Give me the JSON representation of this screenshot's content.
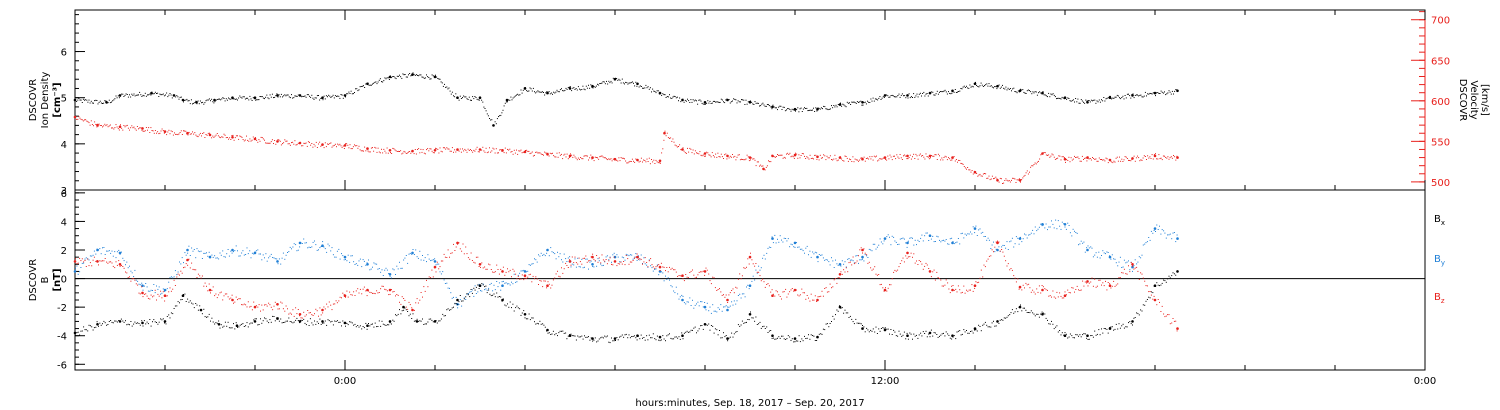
{
  "colors": {
    "density": "#000000",
    "velocity": "#e8201c",
    "bx": "#000000",
    "by": "#1f7fd6",
    "bz": "#e8201c",
    "axes": "#000000"
  },
  "xlabel": "hours:minutes, Sep. 18, 2017 – Sep. 20, 2017",
  "x_ticks": [
    {
      "hour": 0,
      "label": "0:00"
    },
    {
      "hour": 12,
      "label": "12:00"
    },
    {
      "hour": 24,
      "label": "0:00"
    }
  ],
  "chart_data": [
    {
      "type": "scatter",
      "panel": "top",
      "left_axis": {
        "label_lines": [
          "DSCOVR",
          "Ion Density",
          "[cm⁻³]"
        ],
        "ticks": [
          3,
          4,
          5,
          6
        ],
        "tick_labels": [
          "3",
          "4",
          "5",
          "6"
        ],
        "range": [
          3.0,
          6.9
        ]
      },
      "right_axis": {
        "label_lines": [
          "DSCOVR",
          "Velocity",
          "[km/s]"
        ],
        "ticks": [
          500,
          550,
          600,
          650,
          700
        ],
        "tick_labels": [
          "500",
          "550",
          "600",
          "650",
          "700"
        ],
        "range": [
          490,
          712
        ]
      },
      "x_range_hours": [
        -6,
        24
      ],
      "series": [
        {
          "key": "density",
          "axis": "left",
          "x": [
            -6.0,
            -5.3,
            -5.0,
            -4.3,
            -3.8,
            -3.6,
            -3.3,
            -2.9,
            -2.5,
            -2.0,
            -1.5,
            -1.0,
            -0.5,
            0.0,
            0.5,
            1.0,
            1.5,
            2.0,
            2.5,
            3.0,
            3.3,
            3.6,
            4.0,
            4.5,
            5.0,
            5.5,
            6.0,
            6.5,
            7.0,
            7.5,
            8.0,
            8.5,
            9.0,
            9.5,
            10.0,
            10.5,
            11.0,
            11.5,
            12.0,
            12.5,
            13.0,
            13.5,
            14.0,
            14.5,
            15.0,
            15.5,
            16.0,
            16.5,
            17.0,
            17.5,
            18.0,
            18.5
          ],
          "y": [
            4.95,
            4.9,
            5.05,
            5.1,
            5.05,
            4.95,
            4.9,
            4.95,
            5.0,
            5.0,
            5.05,
            5.05,
            5.0,
            5.05,
            5.3,
            5.45,
            5.5,
            5.45,
            5.0,
            5.0,
            4.4,
            4.95,
            5.2,
            5.1,
            5.2,
            5.25,
            5.4,
            5.3,
            5.1,
            4.95,
            4.9,
            4.95,
            4.9,
            4.8,
            4.75,
            4.75,
            4.85,
            4.9,
            5.05,
            5.05,
            5.1,
            5.15,
            5.3,
            5.25,
            5.15,
            5.1,
            5.0,
            4.9,
            5.0,
            5.05,
            5.1,
            5.15
          ]
        },
        {
          "key": "velocity",
          "axis": "right",
          "x": [
            -6.0,
            -5.5,
            -5.0,
            -4.5,
            -4.0,
            -3.5,
            -3.0,
            -2.5,
            -2.0,
            -1.5,
            -1.0,
            -0.5,
            0.0,
            0.5,
            1.0,
            1.5,
            2.0,
            2.5,
            3.0,
            3.5,
            4.0,
            4.5,
            5.0,
            5.5,
            6.0,
            6.5,
            7.0,
            7.1,
            7.5,
            8.0,
            8.5,
            9.0,
            9.3,
            9.5,
            10.0,
            10.5,
            11.0,
            11.5,
            12.0,
            12.5,
            13.0,
            13.5,
            14.0,
            14.5,
            15.0,
            15.5,
            16.0,
            16.5,
            17.0,
            17.5,
            18.0,
            18.5
          ],
          "y": [
            580,
            570,
            568,
            566,
            562,
            560,
            558,
            555,
            553,
            550,
            548,
            546,
            545,
            541,
            539,
            538,
            539,
            540,
            540,
            539,
            537,
            534,
            532,
            530,
            528,
            527,
            526,
            560,
            540,
            535,
            532,
            530,
            516,
            532,
            533,
            531,
            530,
            528,
            530,
            532,
            532,
            530,
            512,
            502,
            502,
            535,
            528,
            530,
            527,
            529,
            532,
            530
          ]
        }
      ]
    },
    {
      "type": "scatter",
      "panel": "bottom",
      "left_axis": {
        "label_lines": [
          "DSCOVR",
          "B",
          "[nT]"
        ],
        "ticks": [
          -6,
          -4,
          -2,
          0,
          2,
          4,
          6
        ],
        "tick_labels": [
          "-6",
          "-4",
          "-2",
          "0",
          "2",
          "4",
          "6"
        ],
        "range": [
          -6.4,
          6.2
        ]
      },
      "x_range_hours": [
        -6,
        24
      ],
      "legend": [
        "B",
        "B",
        "B"
      ],
      "legend_subscripts": [
        "x",
        "y",
        "z"
      ],
      "series": [
        {
          "key": "bx",
          "x": [
            -6.0,
            -5.5,
            -5.0,
            -4.5,
            -4.0,
            -3.6,
            -3.2,
            -2.8,
            -2.4,
            -2.0,
            -1.5,
            -1.0,
            -0.5,
            0.0,
            0.5,
            1.0,
            1.3,
            1.6,
            2.0,
            2.5,
            3.0,
            3.5,
            4.0,
            4.5,
            5.0,
            5.5,
            6.0,
            6.5,
            7.0,
            7.5,
            8.0,
            8.5,
            9.0,
            9.5,
            10.0,
            10.5,
            11.0,
            11.5,
            12.0,
            12.5,
            13.0,
            13.5,
            14.0,
            14.5,
            15.0,
            15.5,
            16.0,
            16.5,
            17.0,
            17.5,
            18.0,
            18.5
          ],
          "y": [
            -3.8,
            -3.2,
            -3.0,
            -3.1,
            -3.0,
            -1.2,
            -2.2,
            -3.2,
            -3.3,
            -3.0,
            -2.8,
            -3.0,
            -3.0,
            -3.1,
            -3.3,
            -3.0,
            -2.0,
            -3.0,
            -3.0,
            -1.5,
            -0.5,
            -1.5,
            -2.5,
            -3.6,
            -4.0,
            -4.2,
            -4.2,
            -4.0,
            -4.1,
            -4.0,
            -3.2,
            -4.2,
            -2.5,
            -4.0,
            -4.2,
            -4.1,
            -2.0,
            -3.5,
            -3.6,
            -4.0,
            -3.8,
            -4.0,
            -3.5,
            -3.0,
            -2.0,
            -2.5,
            -4.0,
            -4.0,
            -3.5,
            -3.0,
            -0.5,
            0.5
          ]
        },
        {
          "key": "by",
          "x": [
            -6.0,
            -5.5,
            -5.0,
            -4.5,
            -4.0,
            -3.5,
            -3.0,
            -2.5,
            -2.0,
            -1.5,
            -1.0,
            -0.5,
            0.0,
            0.5,
            1.0,
            1.5,
            2.0,
            2.5,
            3.0,
            3.5,
            4.0,
            4.5,
            5.0,
            5.5,
            6.0,
            6.5,
            7.0,
            7.5,
            8.0,
            8.5,
            9.0,
            9.5,
            10.0,
            10.5,
            11.0,
            11.5,
            12.0,
            12.5,
            13.0,
            13.5,
            14.0,
            14.5,
            15.0,
            15.5,
            16.0,
            16.5,
            17.0,
            17.5,
            18.0,
            18.5
          ],
          "y": [
            0.5,
            2.0,
            1.8,
            -0.5,
            -0.8,
            2.0,
            1.5,
            2.0,
            1.8,
            1.2,
            2.5,
            2.3,
            1.5,
            1.0,
            0.3,
            1.8,
            1.2,
            -1.8,
            -0.5,
            -0.5,
            0.5,
            2.0,
            1.2,
            1.0,
            1.5,
            1.5,
            0.5,
            -1.5,
            -2.0,
            -2.2,
            -0.5,
            2.8,
            2.5,
            1.5,
            1.0,
            1.5,
            2.8,
            2.5,
            3.0,
            2.5,
            3.5,
            2.0,
            2.8,
            3.8,
            3.8,
            2.0,
            1.5,
            0.8,
            3.5,
            2.8
          ]
        },
        {
          "key": "bz",
          "x": [
            -6.0,
            -5.5,
            -5.0,
            -4.5,
            -4.0,
            -3.5,
            -3.0,
            -2.5,
            -2.0,
            -1.5,
            -1.0,
            -0.5,
            0.0,
            0.5,
            1.0,
            1.5,
            2.0,
            2.5,
            3.0,
            3.5,
            4.0,
            4.5,
            5.0,
            5.5,
            6.0,
            6.5,
            7.0,
            7.5,
            8.0,
            8.5,
            9.0,
            9.5,
            10.0,
            10.5,
            11.0,
            11.5,
            12.0,
            12.5,
            13.0,
            13.5,
            14.0,
            14.5,
            15.0,
            15.5,
            16.0,
            16.5,
            17.0,
            17.5,
            18.0,
            18.5
          ],
          "y": [
            1.2,
            1.2,
            1.0,
            -1.0,
            -1.2,
            1.3,
            -0.8,
            -1.5,
            -2.0,
            -1.8,
            -2.5,
            -2.2,
            -1.2,
            -0.8,
            -0.8,
            -2.2,
            0.8,
            2.5,
            1.0,
            0.5,
            0.2,
            -0.5,
            1.2,
            1.5,
            1.2,
            1.5,
            0.8,
            0.2,
            0.5,
            -1.5,
            1.5,
            -1.2,
            -0.8,
            -1.5,
            0.3,
            2.0,
            -0.8,
            1.8,
            0.5,
            -0.8,
            -0.5,
            2.5,
            -0.6,
            -0.8,
            -1.2,
            -0.2,
            -0.5,
            1.0,
            -1.5,
            -3.5
          ]
        }
      ]
    }
  ]
}
